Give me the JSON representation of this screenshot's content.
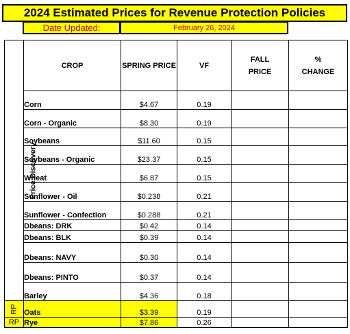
{
  "title": "2024 Estimated Prices for Revenue Protection Policies",
  "date_label": "Date Updated:",
  "date_value": "February 26, 2024",
  "headers": {
    "crop": "CROP",
    "spring": "SPRING PRICE",
    "vf": "VF",
    "fall_line1": "FALL",
    "fall_line2": "PRICE",
    "change_line1": "%",
    "change_line2": "CHANGE"
  },
  "side_label": "Price Discovery",
  "rows": [
    {
      "crop": "Corn",
      "spring": "$4.67",
      "vf": "0.19"
    },
    {
      "crop": "Corn - Organic",
      "spring": "$8.30",
      "vf": "0.19"
    },
    {
      "crop": "Soybeans",
      "spring": "$11.60",
      "vf": "0.15"
    },
    {
      "crop": "Soybeans - Organic",
      "spring": "$23.37",
      "vf": "0.15"
    },
    {
      "crop": "Wheat",
      "spring": "$6.87",
      "vf": "0.15"
    },
    {
      "crop": "Sunflower - Oil",
      "spring": "$0.238",
      "vf": "0.21"
    },
    {
      "crop": "Sunflower - Confection",
      "spring": "$0.288",
      "vf": "0.21"
    },
    {
      "crop": "Dbeans: DRK",
      "spring": "$0.42",
      "vf": "0.14"
    },
    {
      "crop": "Dbeans: BLK",
      "spring": "$0.39",
      "vf": "0.14"
    },
    {
      "crop": "Dbeans: NAVY",
      "spring": "$0.30",
      "vf": "0.14"
    },
    {
      "crop": "Dbeans: PINTO",
      "spring": "$0.37",
      "vf": "0.14"
    },
    {
      "crop": "Barley",
      "spring": "$4.36",
      "vf": "0.18"
    }
  ],
  "rp_rows": [
    {
      "side": "RP",
      "crop": "Oats",
      "spring": "$3.39",
      "vf": "0.19"
    },
    {
      "side": "RP",
      "crop": "Rye",
      "spring": "$7.86",
      "vf": "0.26"
    }
  ],
  "colors": {
    "highlight": "#ffff00",
    "date_text": "#c00000"
  }
}
